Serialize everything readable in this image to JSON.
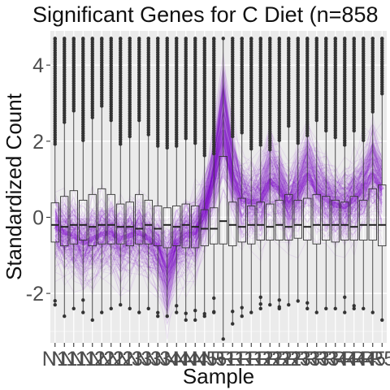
{
  "chart_data": {
    "type": "box-with-parallel-lines",
    "title": "Significant Genes for C Diet (n=858",
    "xlabel": "Sample",
    "ylabel": "Standardized Count",
    "ylim": [
      -3.3,
      4.9
    ],
    "yticks": [
      -2,
      0,
      2,
      4
    ],
    "ytick_labels": [
      "-2",
      "0",
      "2",
      "4"
    ],
    "grid": true,
    "panel_background": "#ebebeb",
    "line_color": "#7a00cc",
    "box_fill": "none",
    "box_outline": "#333333",
    "categories": [
      "N",
      "N",
      "N",
      "N",
      "N",
      "N",
      "N",
      "N",
      "N",
      "N",
      "N",
      "N",
      "N",
      "N",
      "N",
      "N",
      "N",
      "N",
      "R",
      "R",
      "R",
      "R",
      "R",
      "R",
      "R",
      "R",
      "R",
      "R",
      "R",
      "R",
      "R",
      "R",
      "R",
      "R",
      "R",
      "R"
    ],
    "xtick_labels": [
      "N1",
      "N1",
      "N1",
      "N1",
      "N2",
      "N2",
      "N2",
      "N2",
      "N3",
      "N3",
      "N3",
      "N3",
      "N4",
      "N4",
      "N4",
      "N4",
      "N5",
      "N5",
      "R1",
      "R1",
      "R1",
      "R1",
      "R2",
      "R2",
      "R2",
      "R2",
      "R3",
      "R3",
      "R3",
      "R3",
      "R4",
      "R4",
      "R4",
      "R4",
      "R5",
      "R5"
    ],
    "series": [
      {
        "median": -0.2,
        "q1": -0.65,
        "q3": 0.38,
        "whisker_low": -2.3,
        "whisker_high": 4.7
      },
      {
        "median": -0.25,
        "q1": -0.75,
        "q3": 0.55,
        "whisker_low": -2.6,
        "whisker_high": 4.7
      },
      {
        "median": -0.2,
        "q1": -0.7,
        "q3": 0.7,
        "whisker_low": -2.4,
        "whisker_high": 4.7
      },
      {
        "median": -0.2,
        "q1": -0.6,
        "q3": 0.45,
        "whisker_low": -2.5,
        "whisker_high": 4.7
      },
      {
        "median": -0.25,
        "q1": -0.75,
        "q3": 0.6,
        "whisker_low": -2.7,
        "whisker_high": 4.7
      },
      {
        "median": -0.2,
        "q1": -0.7,
        "q3": 0.75,
        "whisker_low": -2.5,
        "whisker_high": 4.7
      },
      {
        "median": -0.2,
        "q1": -0.7,
        "q3": 0.6,
        "whisker_low": -2.4,
        "whisker_high": 4.7
      },
      {
        "median": -0.25,
        "q1": -0.7,
        "q3": 0.35,
        "whisker_low": -2.3,
        "whisker_high": 4.7
      },
      {
        "median": -0.25,
        "q1": -0.75,
        "q3": 0.4,
        "whisker_low": -2.4,
        "whisker_high": 4.7
      },
      {
        "median": -0.3,
        "q1": -0.7,
        "q3": 0.6,
        "whisker_low": -2.5,
        "whisker_high": 4.7
      },
      {
        "median": -0.2,
        "q1": -0.7,
        "q3": 0.45,
        "whisker_low": -2.4,
        "whisker_high": 4.7
      },
      {
        "median": -0.3,
        "q1": -0.75,
        "q3": 0.3,
        "whisker_low": -2.6,
        "whisker_high": 4.7
      },
      {
        "median": -0.2,
        "q1": -0.8,
        "q3": 0.25,
        "whisker_low": -2.6,
        "whisker_high": 4.7
      },
      {
        "median": -0.25,
        "q1": -0.75,
        "q3": 0.3,
        "whisker_low": -2.5,
        "whisker_high": 4.7
      },
      {
        "median": -0.2,
        "q1": -0.8,
        "q3": 0.35,
        "whisker_low": -2.7,
        "whisker_high": 4.7
      },
      {
        "median": -0.25,
        "q1": -0.8,
        "q3": 0.3,
        "whisker_low": -2.7,
        "whisker_high": 4.7
      },
      {
        "median": -0.3,
        "q1": -0.75,
        "q3": 0.2,
        "whisker_low": -2.6,
        "whisker_high": 4.7
      },
      {
        "median": -0.3,
        "q1": -0.7,
        "q3": 0.25,
        "whisker_low": -2.5,
        "whisker_high": 4.7
      },
      {
        "median": -0.1,
        "q1": -0.7,
        "q3": 1.6,
        "whisker_low": -3.2,
        "whisker_high": 4.7
      },
      {
        "median": -0.2,
        "q1": -0.75,
        "q3": 0.4,
        "whisker_low": -2.8,
        "whisker_high": 4.7
      },
      {
        "median": -0.25,
        "q1": -0.65,
        "q3": 0.5,
        "whisker_low": -2.6,
        "whisker_high": 4.7
      },
      {
        "median": -0.2,
        "q1": -0.7,
        "q3": 0.3,
        "whisker_low": -2.5,
        "whisker_high": 4.7
      },
      {
        "median": -0.2,
        "q1": -0.6,
        "q3": 0.4,
        "whisker_low": -2.4,
        "whisker_high": 4.7
      },
      {
        "median": -0.25,
        "q1": -0.6,
        "q3": 0.35,
        "whisker_low": -2.3,
        "whisker_high": 4.7
      },
      {
        "median": -0.2,
        "q1": -0.6,
        "q3": 0.45,
        "whisker_low": -2.4,
        "whisker_high": 4.7
      },
      {
        "median": -0.25,
        "q1": -0.6,
        "q3": 0.6,
        "whisker_low": -2.3,
        "whisker_high": 4.7
      },
      {
        "median": -0.2,
        "q1": -0.55,
        "q3": 0.45,
        "whisker_low": -2.2,
        "whisker_high": 4.7
      },
      {
        "median": -0.25,
        "q1": -0.6,
        "q3": 0.5,
        "whisker_low": -2.4,
        "whisker_high": 4.7
      },
      {
        "median": -0.2,
        "q1": -0.7,
        "q3": 0.6,
        "whisker_low": -2.5,
        "whisker_high": 4.7
      },
      {
        "median": -0.2,
        "q1": -0.6,
        "q3": 0.55,
        "whisker_low": -2.4,
        "whisker_high": 4.7
      },
      {
        "median": -0.2,
        "q1": -0.65,
        "q3": 0.45,
        "whisker_low": -2.4,
        "whisker_high": 4.7
      },
      {
        "median": -0.2,
        "q1": -0.6,
        "q3": 0.4,
        "whisker_low": -2.5,
        "whisker_high": 4.7
      },
      {
        "median": -0.25,
        "q1": -0.6,
        "q3": 0.55,
        "whisker_low": -2.4,
        "whisker_high": 4.7
      },
      {
        "median": -0.2,
        "q1": -0.6,
        "q3": 0.45,
        "whisker_low": -2.4,
        "whisker_high": 4.7
      },
      {
        "median": -0.2,
        "q1": -0.6,
        "q3": 0.75,
        "whisker_low": -2.5,
        "whisker_high": 4.7
      },
      {
        "median": -0.2,
        "q1": -0.75,
        "q3": 0.85,
        "whisker_low": -2.7,
        "whisker_high": 4.7
      }
    ],
    "profile_mean": [
      -0.3,
      -0.5,
      -0.6,
      -0.85,
      -0.7,
      -0.55,
      -0.5,
      -0.7,
      -0.6,
      -0.5,
      -0.7,
      -0.95,
      -1.6,
      -0.8,
      -0.6,
      -0.5,
      0.2,
      1.3,
      2.8,
      1.3,
      0.6,
      0.5,
      0.55,
      1.2,
      0.9,
      0.4,
      0.8,
      1.4,
      0.9,
      0.6,
      0.4,
      0.35,
      0.6,
      0.9,
      1.4,
      0.9
    ]
  }
}
